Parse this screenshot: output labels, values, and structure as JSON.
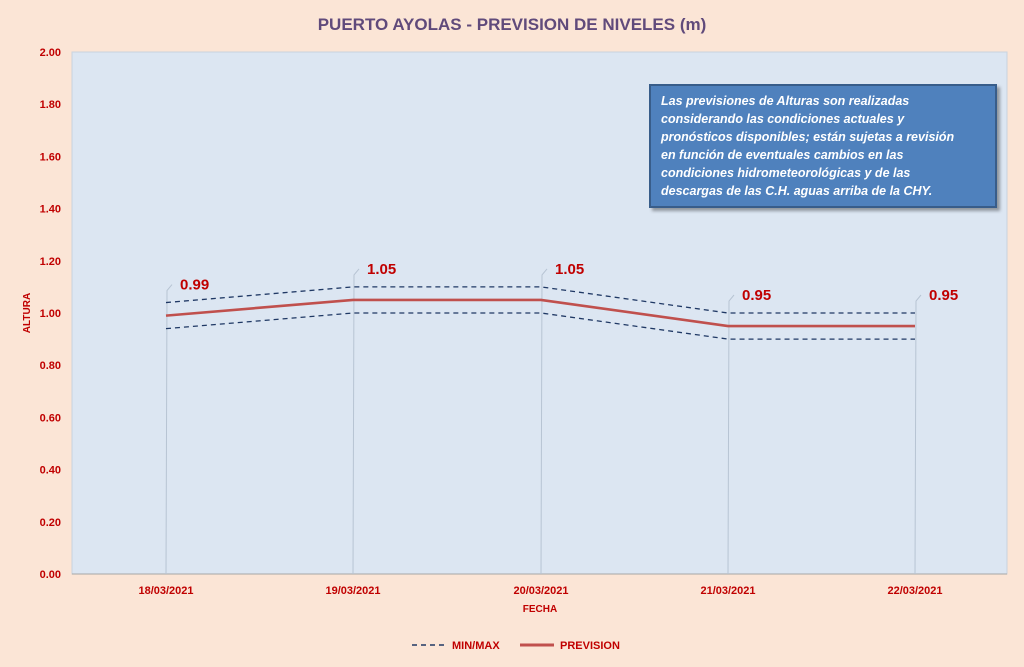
{
  "chart_data": {
    "type": "line",
    "title": "PUERTO AYOLAS - PREVISION DE NIVELES (m)",
    "xlabel": "FECHA",
    "ylabel": "ALTURA",
    "categories": [
      "18/03/2021",
      "19/03/2021",
      "20/03/2021",
      "21/03/2021",
      "22/03/2021"
    ],
    "ylim": [
      0,
      2
    ],
    "yticks": [
      "0.00",
      "0.20",
      "0.40",
      "0.60",
      "0.80",
      "1.00",
      "1.20",
      "1.40",
      "1.60",
      "1.80",
      "2.00"
    ],
    "grid": false,
    "legend": "bottom",
    "series": [
      {
        "name": "PREVISION",
        "values": [
          0.99,
          1.05,
          1.05,
          0.95,
          0.95
        ],
        "labels": [
          "0.99",
          "1.05",
          "1.05",
          "0.95",
          "0.95"
        ],
        "color": "#c0504d",
        "style": "solid"
      },
      {
        "name": "MIN/MAX",
        "values": [
          1.04,
          1.1,
          1.1,
          1.0,
          1.0
        ],
        "color": "#1f3864",
        "style": "dashed"
      },
      {
        "name": "MIN/MAX",
        "values": [
          0.94,
          1.0,
          1.0,
          0.9,
          0.9
        ],
        "color": "#1f3864",
        "style": "dashed"
      }
    ]
  },
  "legend": {
    "items": [
      {
        "label": "MIN/MAX",
        "color": "#1f3864",
        "style": "dashed"
      },
      {
        "label": "PREVISION",
        "color": "#c0504d",
        "style": "solid"
      }
    ]
  },
  "note": {
    "lines": [
      "Las previsiones de Alturas son realizadas",
      "considerando las condiciones actuales y",
      "pronósticos disponibles;  están sujetas a revisión",
      "en función de eventuales cambios en las",
      "condiciones hidrometeorológicas y de las",
      "descargas de las C.H. aguas arriba de la CHY."
    ]
  },
  "colors": {
    "page_background": "#fbe5d6",
    "plot_background": "#dce6f2",
    "note_background": "#4f81bd"
  }
}
